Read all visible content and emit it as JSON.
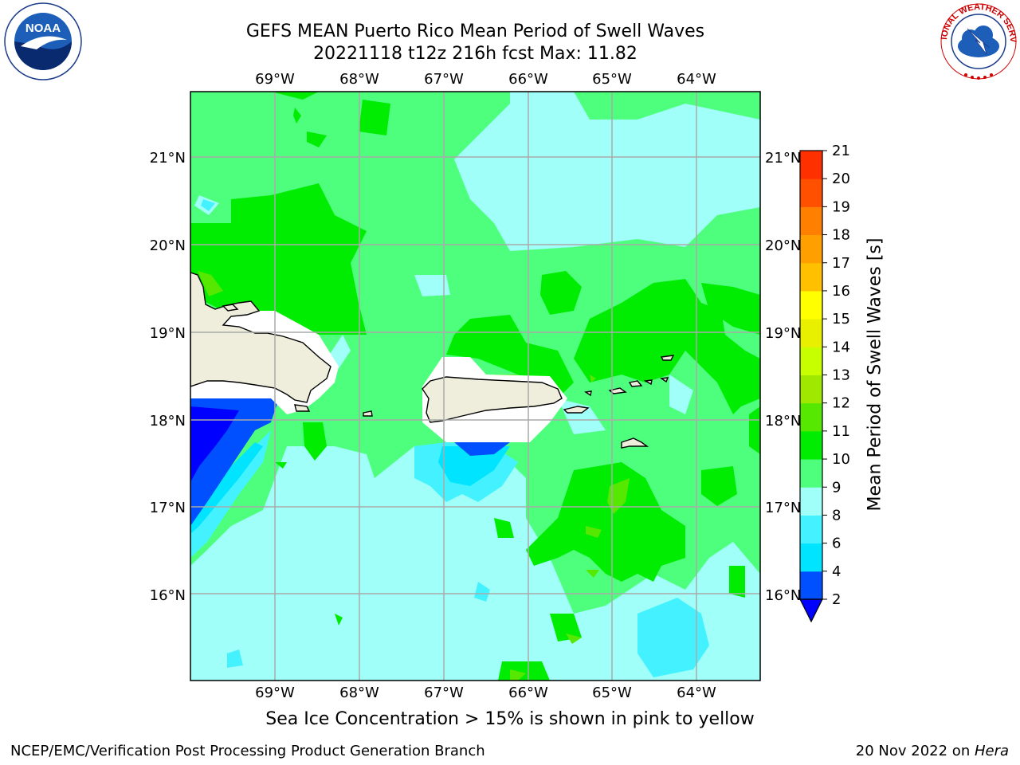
{
  "title": {
    "line1": "GEFS MEAN Puerto Rico Mean Period of Swell Waves",
    "line2": "20221118 t12z 216h fcst   Max: 11.82"
  },
  "chart_data": {
    "type": "map-contour",
    "variable": "Mean Period of Swell Waves",
    "units": "s",
    "max_value": 11.82,
    "lon_range": [
      -70,
      -63.25
    ],
    "lat_range": [
      15,
      21.75
    ],
    "lon_ticks": [
      "69°W",
      "68°W",
      "67°W",
      "66°W",
      "65°W",
      "64°W"
    ],
    "lat_ticks": [
      "16°N",
      "17°N",
      "18°N",
      "19°N",
      "20°N",
      "21°N"
    ],
    "colorbar": {
      "label": "Mean Period of Swell Waves [s]",
      "levels": [
        2,
        4,
        6,
        8,
        9,
        10,
        11,
        12,
        13,
        14,
        15,
        16,
        17,
        18,
        19,
        20,
        21
      ],
      "colors": [
        "#0050ff",
        "#00e4ff",
        "#44f2ff",
        "#a0fff9",
        "#4eff7e",
        "#00ec00",
        "#56e800",
        "#a0e800",
        "#c8ff00",
        "#e8f000",
        "#ffff00",
        "#ffc000",
        "#ffa000",
        "#ff8000",
        "#ff5000",
        "#ff3000",
        "#ff0000"
      ],
      "under_color": "#0000ff",
      "extend": "min"
    },
    "grid": true
  },
  "sea_ice_note": "Sea Ice Concentration > 15% is shown in pink to yellow",
  "footer": {
    "credit": "NCEP/EMC/Verification Post Processing Product Generation Branch",
    "date": "20 Nov 2022 on ",
    "host": "Hera"
  },
  "logos": {
    "left": "NOAA",
    "right": "NATIONAL WEATHER SERVICE"
  },
  "colors": {
    "land": "#efeedc",
    "background_green": "#4eff7e",
    "grid": "#aaaaaa"
  }
}
